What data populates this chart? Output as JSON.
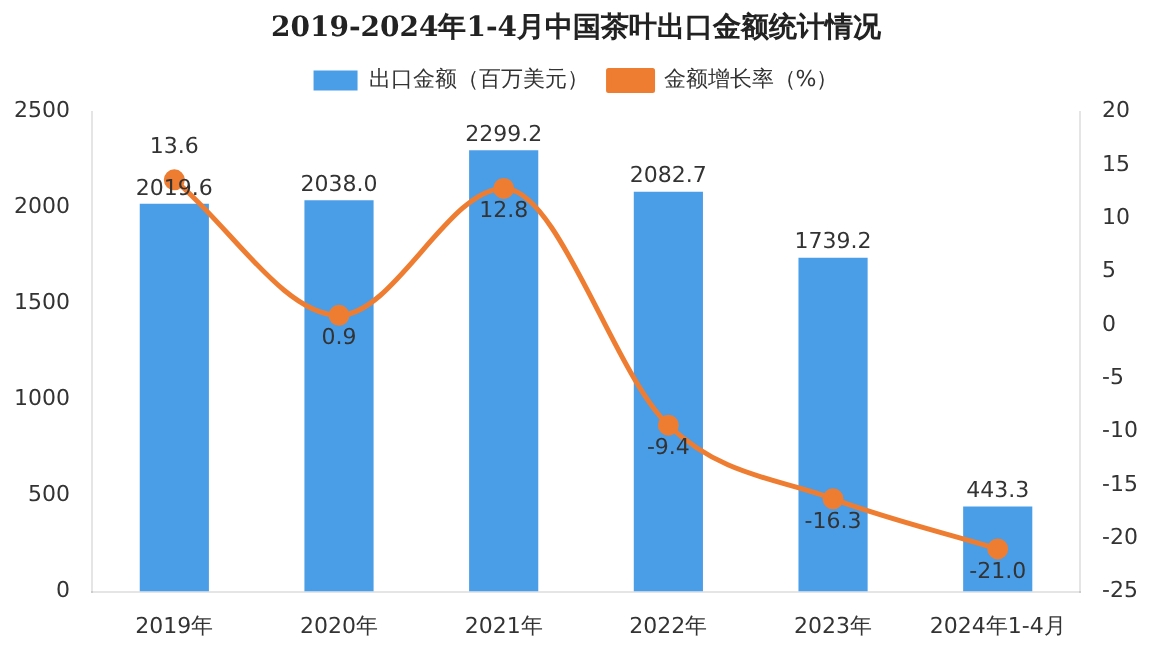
{
  "chart_data": {
    "type": "bar",
    "title": "2019-2024年1-4月中国茶叶出口金额统计情况",
    "categories": [
      "2019年",
      "2020年",
      "2021年",
      "2022年",
      "2023年",
      "2024年1-4月"
    ],
    "series": [
      {
        "name": "出口金额（百万美元）",
        "color": "#4a9ee8",
        "values": [
          2019.6,
          2038.0,
          2299.2,
          2082.7,
          1739.2,
          443.3
        ],
        "value_labels": [
          "2019.6",
          "2038.0",
          "2299.2",
          "2082.7",
          "1739.2",
          "443.3"
        ]
      },
      {
        "name": "金额增长率（%）",
        "type": "line",
        "axis": "y2",
        "color": "#ee7d31",
        "values": [
          13.6,
          0.9,
          12.8,
          -9.4,
          -16.3,
          -21.0
        ],
        "value_labels": [
          "13.6",
          "0.9",
          "12.8",
          "-9.4",
          "-16.3",
          "-21.0"
        ]
      }
    ],
    "ylim": [
      0,
      2500
    ],
    "yticks": [
      0,
      500,
      1000,
      1500,
      2000,
      2500
    ],
    "y2lim": [
      -25,
      20
    ],
    "y2ticks": [
      -25,
      -20,
      -15,
      -10,
      -5,
      0,
      5,
      10,
      15,
      20
    ],
    "legend": "top",
    "marker": "circle",
    "grid": false
  }
}
